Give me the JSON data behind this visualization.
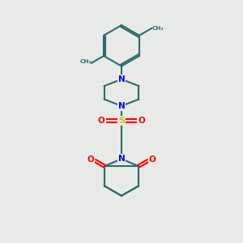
{
  "bg_color": "#e8eae8",
  "bond_color": "#2d6b6b",
  "n_color": "#0000ff",
  "o_color": "#ff0000",
  "s_color": "#cccc00",
  "line_width": 1.5,
  "fig_size": [
    3.0,
    3.0
  ],
  "dpi": 100,
  "xlim": [
    0,
    10
  ],
  "ylim": [
    0,
    10
  ]
}
